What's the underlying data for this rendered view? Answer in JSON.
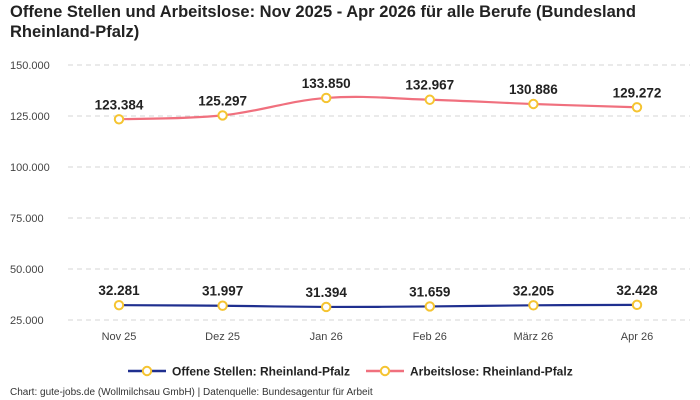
{
  "chart_data": {
    "type": "line",
    "title": "Offene Stellen und Arbeitslose: Nov 2025 - Apr 2026 für alle Berufe (Bundesland Rheinland-Pfalz)",
    "categories": [
      "Nov 25",
      "Dez 25",
      "Jan 26",
      "Feb 26",
      "März 26",
      "Apr 26"
    ],
    "y_ticks": [
      "25.000",
      "50.000",
      "75.000",
      "100.000",
      "125.000",
      "150.000"
    ],
    "ylim": [
      25000,
      150000
    ],
    "grid": true,
    "legend_position": "bottom",
    "series": [
      {
        "name": "Offene Stellen: Rheinland-Pfalz",
        "color": "#1f2f8f",
        "values": [
          32281,
          31997,
          31394,
          31659,
          32205,
          32428
        ],
        "labels": [
          "32.281",
          "31.997",
          "31.394",
          "31.659",
          "32.205",
          "32.428"
        ]
      },
      {
        "name": "Arbeitslose: Rheinland-Pfalz",
        "color": "#f0707e",
        "values": [
          123384,
          125297,
          133850,
          132967,
          130886,
          129272
        ],
        "labels": [
          "123.384",
          "125.297",
          "133.850",
          "132.967",
          "130.886",
          "129.272"
        ]
      }
    ],
    "marker_color": "#f5c431"
  },
  "footer": "Chart: gute-jobs.de (Wollmilchsau GmbH) | Datenquelle: Bundesagentur für Arbeit"
}
